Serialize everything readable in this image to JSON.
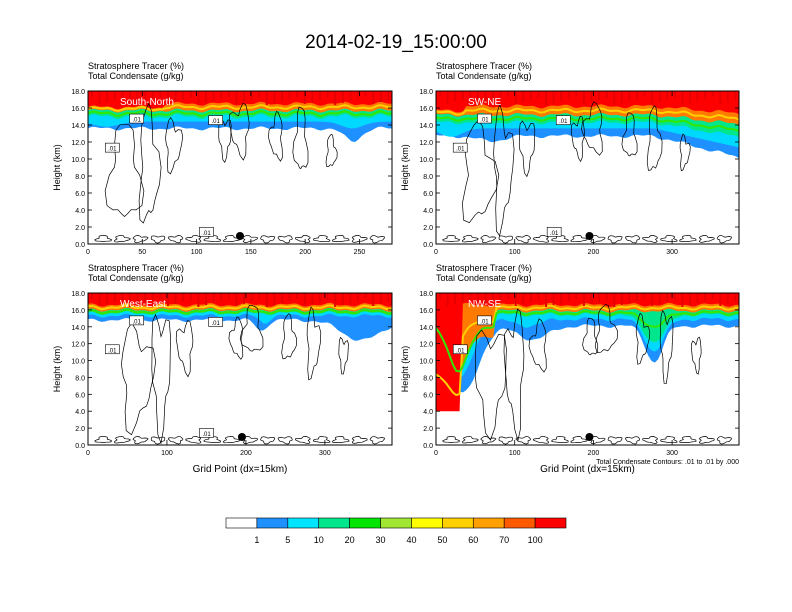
{
  "title": "2014-02-19_15:00:00",
  "colorbar": {
    "labels": [
      "1",
      "5",
      "10",
      "20",
      "30",
      "40",
      "50",
      "60",
      "70",
      "100"
    ],
    "colors": [
      "#ffffff",
      "#1e90ff",
      "#00e5ff",
      "#00e68c",
      "#00e600",
      "#a0e632",
      "#ffff00",
      "#ffd000",
      "#ffa000",
      "#ff5a00",
      "#ff0000"
    ]
  },
  "chart_data": [
    {
      "type": "heatmap",
      "label": "South-North",
      "title_lines": [
        "Stratosphere Tracer   (%)",
        "Total Condensate   (g/kg)"
      ],
      "ylabel": "Height (km)",
      "xlabel": "",
      "xlim": [
        0,
        280
      ],
      "xticks": [
        0,
        50,
        100,
        150,
        200,
        250
      ],
      "ylim": [
        0,
        18
      ],
      "yticks": [
        "0.0",
        "2.0",
        "4.0",
        "6.0",
        "8.0",
        "10.0",
        "12.0",
        "14.0",
        "16.0",
        "18.0"
      ],
      "marker_x": 140,
      "contour_labels": [
        ".01",
        ".01",
        ".01",
        ".01"
      ],
      "note": ""
    },
    {
      "type": "heatmap",
      "label": "SW-NE",
      "title_lines": [
        "Stratosphere Tracer   (%)",
        "Total Condensate   (g/kg)"
      ],
      "ylabel": "Height (km)",
      "xlabel": "",
      "xlim": [
        0,
        385
      ],
      "xticks": [
        0,
        100,
        200,
        300
      ],
      "ylim": [
        0,
        18
      ],
      "yticks": [
        "0.0",
        "2.0",
        "4.0",
        "6.0",
        "8.0",
        "10.0",
        "12.0",
        "14.0",
        "16.0",
        "18.0"
      ],
      "marker_x": 195,
      "contour_labels": [
        ".01",
        ".01",
        ".01",
        ".01"
      ],
      "note": ""
    },
    {
      "type": "heatmap",
      "label": "West-East",
      "title_lines": [
        "Stratosphere Tracer   (%)",
        "Total Condensate   (g/kg)"
      ],
      "ylabel": "Height (km)",
      "xlabel": "Grid Point (dx=15km)",
      "xlim": [
        0,
        385
      ],
      "xticks": [
        0,
        100,
        200,
        300
      ],
      "ylim": [
        0,
        18
      ],
      "yticks": [
        "0.0",
        "2.0",
        "4.0",
        "6.0",
        "8.0",
        "10.0",
        "12.0",
        "14.0",
        "16.0",
        "18.0"
      ],
      "marker_x": 195,
      "contour_labels": [
        ".01",
        ".01",
        ".01",
        ".01"
      ],
      "note": ""
    },
    {
      "type": "heatmap",
      "label": "NW-SE",
      "title_lines": [
        "Stratosphere Tracer   (%)",
        "Total Condensate   (g/kg)"
      ],
      "ylabel": "Height (km)",
      "xlabel": "Grid Point (dx=15km)",
      "xlim": [
        0,
        385
      ],
      "xticks": [
        0,
        100,
        200,
        300
      ],
      "ylim": [
        0,
        18
      ],
      "yticks": [
        "0.0",
        "2.0",
        "4.0",
        "6.0",
        "8.0",
        "10.0",
        "12.0",
        "14.0",
        "16.0",
        "18.0"
      ],
      "marker_x": 195,
      "contour_labels": [
        ".01",
        ".01"
      ],
      "note": "Total Condensate Contours: .01 to .01 by .000"
    }
  ]
}
